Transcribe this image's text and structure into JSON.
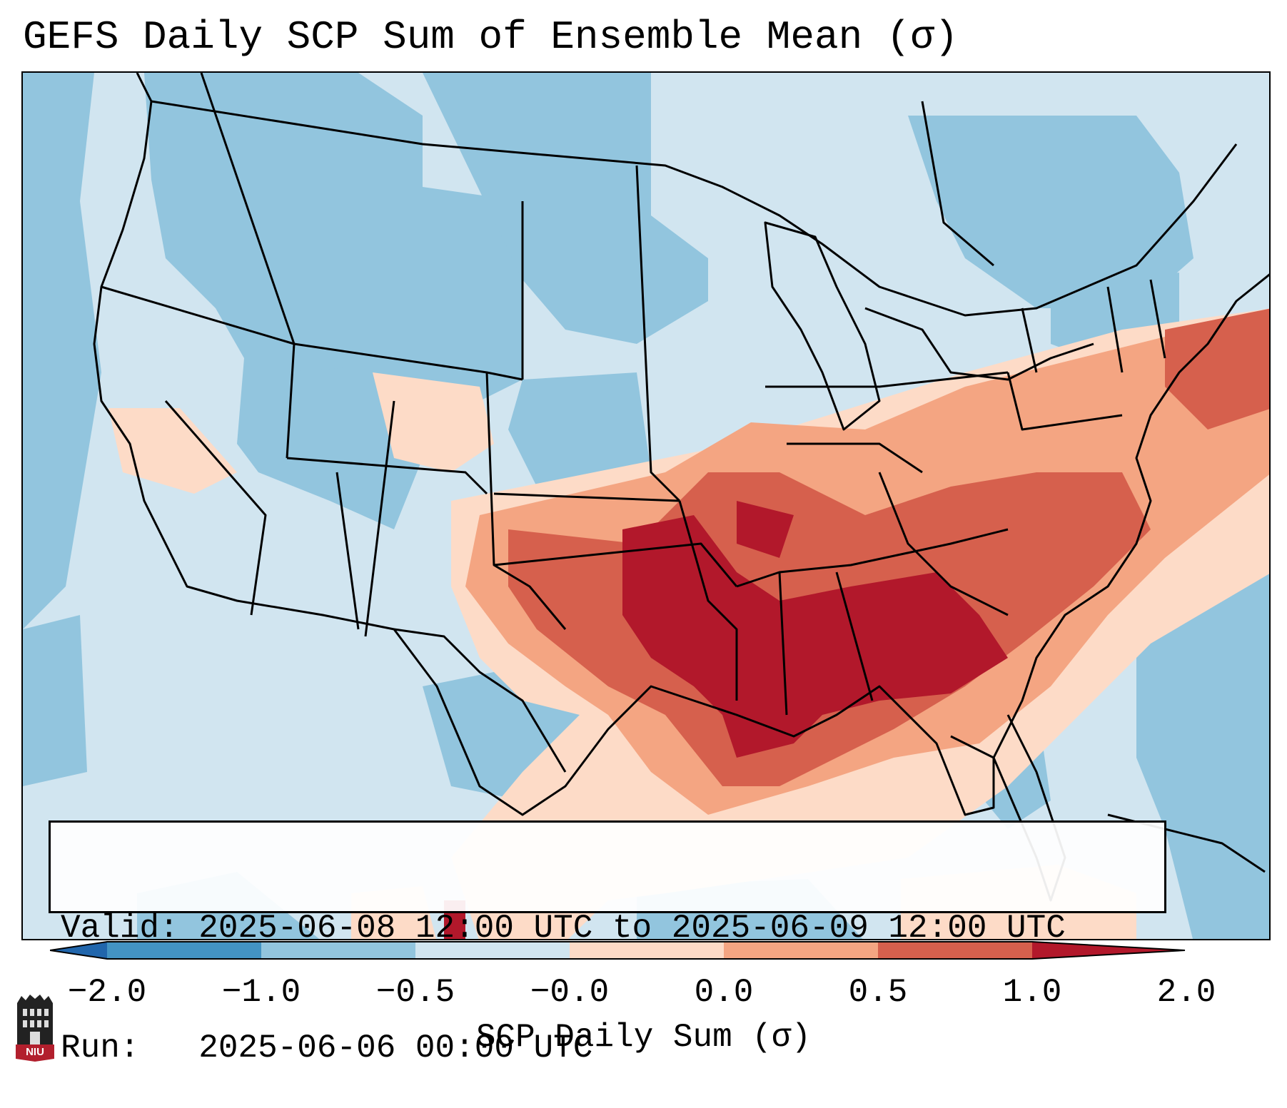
{
  "title": "GEFS Daily SCP Sum of Ensemble Mean (σ)",
  "info": {
    "valid_label": "Valid:",
    "valid_value": "2025-06-08 12:00 UTC to 2025-06-09 12:00 UTC",
    "run_label": "Run:",
    "run_value": "2025-06-06 00:00 UTC"
  },
  "colorbar": {
    "label": "SCP Daily Sum (σ)",
    "ticks": [
      "−2.0",
      "−1.0",
      "−0.5",
      "−0.0",
      "0.0",
      "0.5",
      "1.0",
      "2.0"
    ],
    "colors": [
      "#4393c3",
      "#92c5de",
      "#d1e5f0",
      "#fddbc7",
      "#f4a582",
      "#d6604d",
      "#b2182b"
    ],
    "under_color": "#2166ac",
    "over_color": "#b2182b"
  },
  "logo": {
    "text": "NIU",
    "color": "#b21f2d"
  },
  "map": {
    "background_color": "#d1e5f0",
    "outline_color": "#000000"
  }
}
